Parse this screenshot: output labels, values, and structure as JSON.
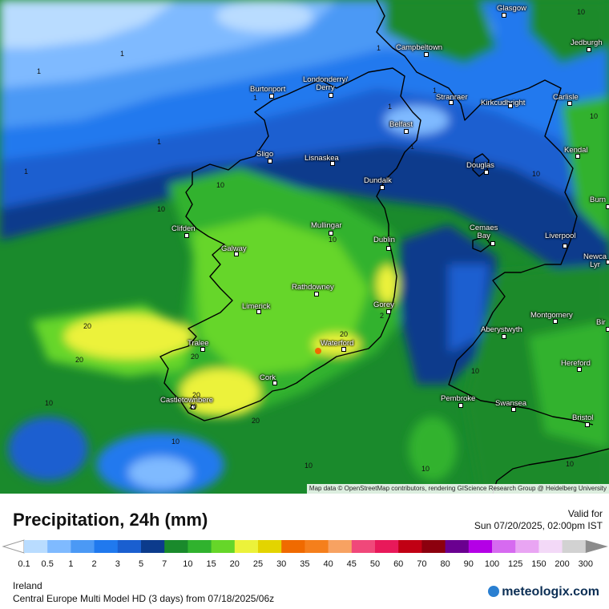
{
  "map": {
    "attribution": "Map data © OpenStreetMap contributors, rendering GIScience Research Group @ Heidelberg University",
    "cities": [
      {
        "name": "Glasgow"
      },
      {
        "name": "Campbeltown"
      },
      {
        "name": "Jedburgh"
      },
      {
        "name": "Burtonport"
      },
      {
        "name": "Londonderry/ Derry"
      },
      {
        "name": "Stranraer"
      },
      {
        "name": "Kirkcudbright"
      },
      {
        "name": "Carlisle"
      },
      {
        "name": "Belfast"
      },
      {
        "name": "Sligo"
      },
      {
        "name": "Lisnaskea"
      },
      {
        "name": "Kendal"
      },
      {
        "name": "Douglas"
      },
      {
        "name": "Dundalk"
      },
      {
        "name": "Burn"
      },
      {
        "name": "Clifden"
      },
      {
        "name": "Mullingar"
      },
      {
        "name": "Cemaes Bay"
      },
      {
        "name": "Liverpool"
      },
      {
        "name": "Dublin"
      },
      {
        "name": "Galway"
      },
      {
        "name": "Newca Lyr"
      },
      {
        "name": "Rathdowney"
      },
      {
        "name": "Limerick"
      },
      {
        "name": "Gorey"
      },
      {
        "name": "Montgomery"
      },
      {
        "name": "Bir"
      },
      {
        "name": "Aberystwyth"
      },
      {
        "name": "Tralee"
      },
      {
        "name": "Waterford"
      },
      {
        "name": "Hereford"
      },
      {
        "name": "Cork"
      },
      {
        "name": "Castletownbere"
      },
      {
        "name": "Pembroke"
      },
      {
        "name": "Swansea"
      },
      {
        "name": "Bristol"
      }
    ],
    "value_labels": [
      "1",
      "1",
      "1",
      "1",
      "1",
      "1",
      "1",
      "1",
      "1",
      "10",
      "10",
      "10",
      "10",
      "10",
      "10",
      "10",
      "10",
      "10",
      "10",
      "10",
      "10",
      "20",
      "20",
      "20",
      "20",
      "20",
      "20",
      "20",
      "2"
    ]
  },
  "legend": {
    "title": "Precipitation, 24h (mm)",
    "valid_label": "Valid for",
    "valid_time": "Sun 07/20/2025, 02:00pm IST",
    "ticks": [
      "0.1",
      "0.5",
      "1",
      "2",
      "3",
      "5",
      "7",
      "10",
      "15",
      "20",
      "25",
      "30",
      "35",
      "40",
      "45",
      "50",
      "60",
      "70",
      "80",
      "90",
      "100",
      "125",
      "150",
      "200",
      "300"
    ],
    "colors": [
      "#b9dcff",
      "#7fbaff",
      "#4b99f5",
      "#2079ee",
      "#1a5fd0",
      "#0c3b8c",
      "#1a8a2c",
      "#30b22e",
      "#66d629",
      "#ecf23a",
      "#e3d400",
      "#f06a00",
      "#f57f1c",
      "#f7a262",
      "#f0487a",
      "#e8195a",
      "#c10014",
      "#8c000e",
      "#6a0090",
      "#b400e6",
      "#d66af0",
      "#e9a5f3",
      "#f3d9f7",
      "#d2d2d2"
    ],
    "region": "Ireland",
    "model": "Central Europe Multi Model HD (3 days) from  07/18/2025/06z",
    "brand": "meteologix.com"
  }
}
